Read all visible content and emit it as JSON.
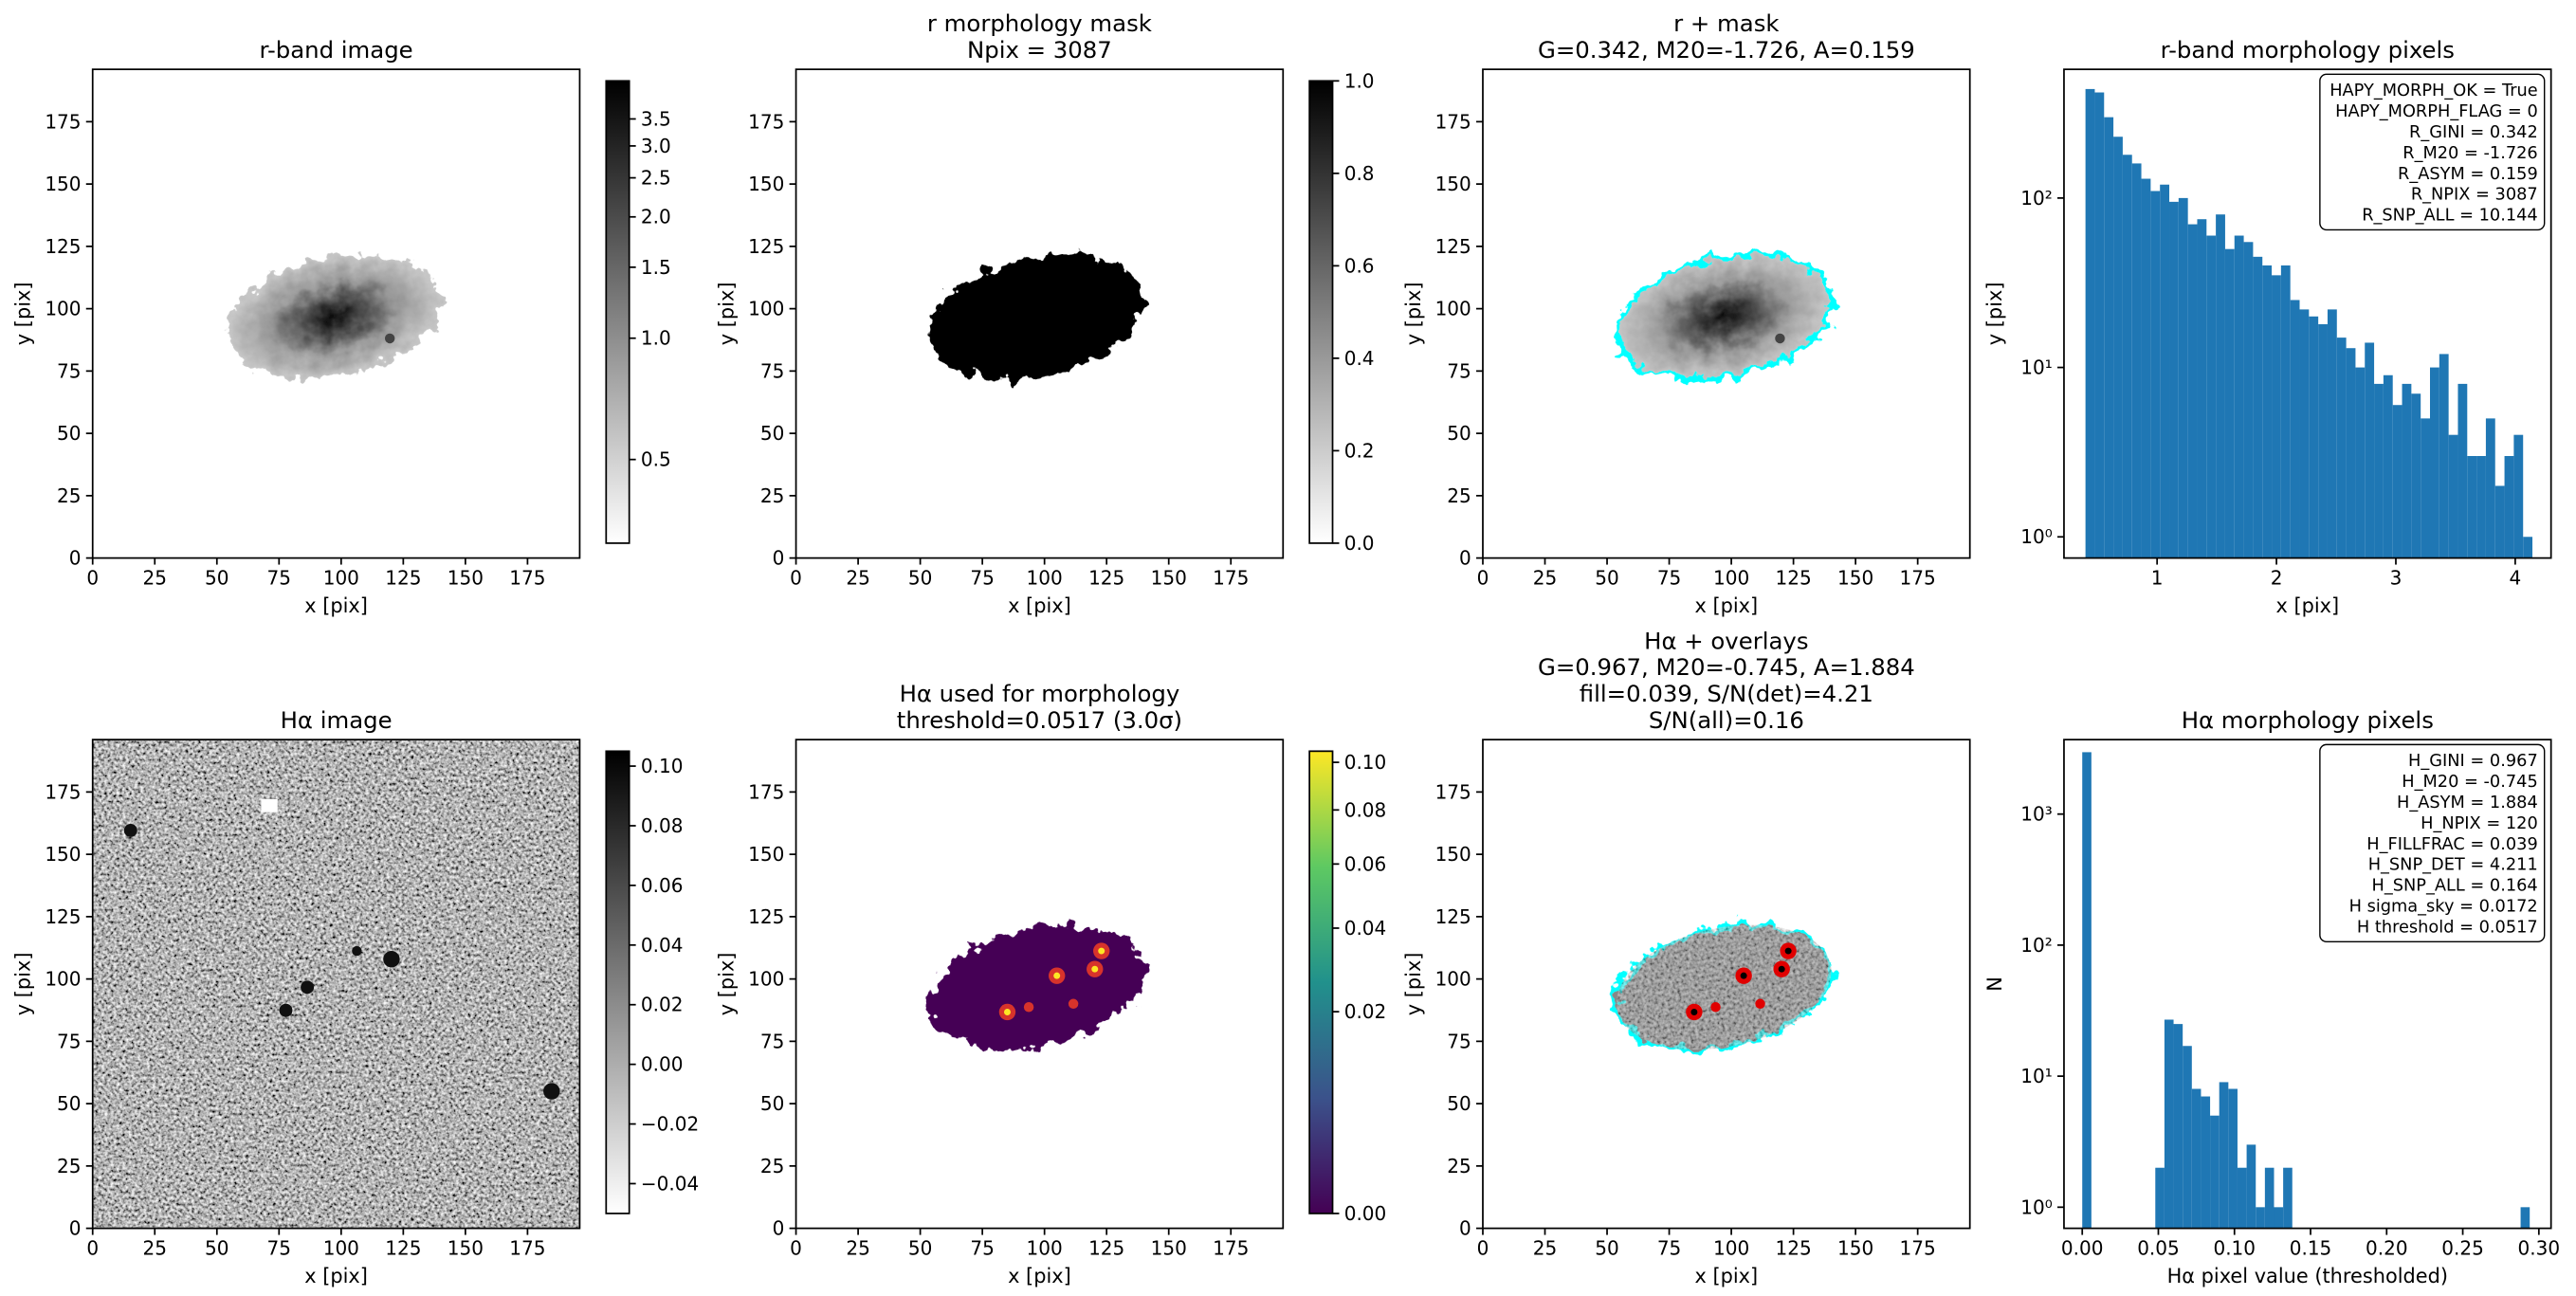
{
  "chart_data": [
    {
      "type": "image",
      "title": "r-band image",
      "xlabel": "x [pix]",
      "ylabel": "y [pix]",
      "xlim": [
        0,
        196
      ],
      "ylim": [
        0,
        196
      ],
      "xticks": [
        0,
        25,
        50,
        75,
        100,
        125,
        150,
        175
      ],
      "yticks": [
        0,
        25,
        50,
        75,
        100,
        125,
        150,
        175
      ],
      "colorbar": {
        "cmap": "Greys",
        "scale": "log",
        "lim": [
          0.31,
          4.35
        ],
        "ticks": [
          0.5,
          {
            "value": 1,
            "label": "1.0"
          },
          1.5,
          {
            "value": 2,
            "label": "2.0"
          },
          2.5,
          {
            "value": 3,
            "label": "3.0"
          },
          3.5
        ]
      }
    },
    {
      "type": "image",
      "title": [
        "r morphology mask",
        "Npix = 3087"
      ],
      "xlabel": "x [pix]",
      "ylabel": "y [pix]",
      "xlim": [
        0,
        196
      ],
      "ylim": [
        0,
        196
      ],
      "xticks": [
        0,
        25,
        50,
        75,
        100,
        125,
        150,
        175
      ],
      "yticks": [
        0,
        25,
        50,
        75,
        100,
        125,
        150,
        175
      ],
      "colorbar": {
        "cmap": "Greys",
        "scale": "linear",
        "lim": [
          0,
          1
        ],
        "ticks": [
          {
            "value": 0,
            "label": "0.0"
          },
          0.2,
          0.4,
          0.6,
          0.8,
          {
            "value": 1,
            "label": "1.0"
          }
        ]
      }
    },
    {
      "type": "image",
      "title": [
        "r + mask",
        "G=0.342, M20=-1.726, A=0.159"
      ],
      "xlabel": "x [pix]",
      "ylabel": "y [pix]",
      "xlim": [
        0,
        196
      ],
      "ylim": [
        0,
        196
      ],
      "xticks": [
        0,
        25,
        50,
        75,
        100,
        125,
        150,
        175
      ],
      "yticks": [
        0,
        25,
        50,
        75,
        100,
        125,
        150,
        175
      ]
    },
    {
      "type": "histogram",
      "title": "r-band morphology pixels",
      "xlabel": "x [pix]",
      "ylabel": "y [pix]",
      "color": "#1f77b4",
      "yscale": "log",
      "xlim": [
        0.22,
        4.3
      ],
      "xticks": [
        1,
        2,
        3,
        4
      ],
      "ylim": [
        0.75,
        575
      ],
      "yticks": [
        {
          "value": 1,
          "label": "10⁰"
        },
        {
          "value": 10,
          "label": "10¹"
        },
        {
          "value": 100,
          "label": "10²"
        }
      ],
      "bins": [
        0.4,
        0.478,
        0.556,
        0.634,
        0.712,
        0.79,
        0.868,
        0.946,
        1.024,
        1.102,
        1.18,
        1.258,
        1.336,
        1.414,
        1.492,
        1.57,
        1.648,
        1.726,
        1.804,
        1.882,
        1.96,
        2.038,
        2.116,
        2.194,
        2.272,
        2.35,
        2.428,
        2.506,
        2.584,
        2.662,
        2.74,
        2.818,
        2.896,
        2.974,
        3.052,
        3.13,
        3.208,
        3.286,
        3.364,
        3.442,
        3.52,
        3.598,
        3.676,
        3.754,
        3.832,
        3.91,
        3.988,
        4.066,
        4.144
      ],
      "values": [
        440,
        420,
        300,
        230,
        180,
        160,
        130,
        110,
        120,
        95,
        100,
        70,
        75,
        60,
        80,
        50,
        60,
        55,
        45,
        40,
        35,
        40,
        25,
        22,
        20,
        18,
        22,
        15,
        13,
        10,
        14,
        8,
        9,
        6,
        8,
        7,
        5,
        10,
        12,
        4,
        8,
        3,
        3,
        5,
        2,
        3,
        4,
        1
      ],
      "annotation": [
        "HAPY_MORPH_OK = True",
        "HAPY_MORPH_FLAG = 0",
        "R_GINI = 0.342",
        "R_M20 = -1.726",
        "R_ASYM = 0.159",
        "R_NPIX = 3087",
        "R_SNP_ALL = 10.144"
      ]
    },
    {
      "type": "image",
      "title": "Hα image",
      "xlabel": "x [pix]",
      "ylabel": "y [pix]",
      "xlim": [
        0,
        196
      ],
      "ylim": [
        0,
        196
      ],
      "xticks": [
        0,
        25,
        50,
        75,
        100,
        125,
        150,
        175
      ],
      "yticks": [
        0,
        25,
        50,
        75,
        100,
        125,
        150,
        175
      ],
      "colorbar": {
        "cmap": "Greys",
        "scale": "linear",
        "lim": [
          -0.05,
          0.105
        ],
        "ticks": [
          {
            "value": -0.04,
            "label": "−0.04"
          },
          {
            "value": -0.02,
            "label": "−0.02"
          },
          {
            "value": 0,
            "label": "0.00"
          },
          {
            "value": 0.02,
            "label": "0.02"
          },
          {
            "value": 0.04,
            "label": "0.04"
          },
          {
            "value": 0.06,
            "label": "0.06"
          },
          {
            "value": 0.08,
            "label": "0.08"
          },
          {
            "value": 0.1,
            "label": "0.10"
          }
        ]
      }
    },
    {
      "type": "image",
      "title": [
        "Hα used for morphology",
        "threshold=0.0517 (3.0σ)"
      ],
      "xlabel": "x [pix]",
      "ylabel": "y [pix]",
      "xlim": [
        0,
        196
      ],
      "ylim": [
        0,
        196
      ],
      "xticks": [
        0,
        25,
        50,
        75,
        100,
        125,
        150,
        175
      ],
      "yticks": [
        0,
        25,
        50,
        75,
        100,
        125,
        150,
        175
      ],
      "colorbar": {
        "cmap": "viridis",
        "scale": "sqrt",
        "lim": [
          0,
          0.105
        ],
        "ticks": [
          {
            "value": 0,
            "label": "0.00"
          },
          {
            "value": 0.02,
            "label": "0.02"
          },
          {
            "value": 0.04,
            "label": "0.04"
          },
          {
            "value": 0.06,
            "label": "0.06"
          },
          {
            "value": 0.08,
            "label": "0.08"
          },
          {
            "value": 0.1,
            "label": "0.10"
          }
        ]
      }
    },
    {
      "type": "image",
      "title": [
        "Hα + overlays",
        "G=0.967, M20=-0.745, A=1.884",
        "fill=0.039, S/N(det)=4.21",
        "S/N(all)=0.16"
      ],
      "xlabel": "x [pix]",
      "ylabel": "y [pix]",
      "xlim": [
        0,
        196
      ],
      "ylim": [
        0,
        196
      ],
      "xticks": [
        0,
        25,
        50,
        75,
        100,
        125,
        150,
        175
      ],
      "yticks": [
        0,
        25,
        50,
        75,
        100,
        125,
        150,
        175
      ]
    },
    {
      "type": "histogram",
      "title": "Hα morphology pixels",
      "xlabel": "Hα pixel value (thresholded)",
      "ylabel": "N",
      "color": "#1f77b4",
      "yscale": "log",
      "xlim": [
        -0.012,
        0.308
      ],
      "xticks": [
        {
          "value": 0,
          "label": "0.00"
        },
        {
          "value": 0.05,
          "label": "0.05"
        },
        {
          "value": 0.1,
          "label": "0.10"
        },
        {
          "value": 0.15,
          "label": "0.15"
        },
        {
          "value": 0.2,
          "label": "0.20"
        },
        {
          "value": 0.25,
          "label": "0.25"
        },
        {
          "value": 0.3,
          "label": "0.30"
        }
      ],
      "ylim": [
        0.69,
        3700
      ],
      "yticks": [
        {
          "value": 1,
          "label": "10⁰"
        },
        {
          "value": 10,
          "label": "10¹"
        },
        {
          "value": 100,
          "label": "10²"
        },
        {
          "value": 1000,
          "label": "10³"
        }
      ],
      "bins": [
        0,
        0.006,
        0.012,
        0.018,
        0.024,
        0.03,
        0.036,
        0.042,
        0.048,
        0.054,
        0.06,
        0.066,
        0.072,
        0.078,
        0.084,
        0.09,
        0.096,
        0.102,
        0.108,
        0.114,
        0.12,
        0.126,
        0.132,
        0.138,
        0.144,
        0.15,
        0.156,
        0.162,
        0.168,
        0.174,
        0.18,
        0.186,
        0.192,
        0.198,
        0.204,
        0.21,
        0.216,
        0.222,
        0.228,
        0.234,
        0.24,
        0.246,
        0.252,
        0.258,
        0.264,
        0.27,
        0.276,
        0.282,
        0.288,
        0.294,
        0.3
      ],
      "values": [
        2967,
        0,
        0,
        0,
        0,
        0,
        0,
        0,
        2,
        27,
        25,
        17,
        8,
        7,
        5,
        9,
        8,
        2,
        3,
        1,
        2,
        1,
        2,
        0,
        0,
        0,
        0,
        0,
        0,
        0,
        0,
        0,
        0,
        0,
        0,
        0,
        0,
        0,
        0,
        0,
        0,
        0,
        0,
        0,
        0,
        0,
        0,
        0,
        1,
        0
      ],
      "annotation": [
        "H_GINI = 0.967",
        "H_M20 = -0.745",
        "H_ASYM = 1.884",
        "H_NPIX = 120",
        "H_FILLFRAC = 0.039",
        "H_SNP_DET = 4.211",
        "H_SNP_ALL = 0.164",
        "H sigma_sky = 0.0172",
        "H threshold = 0.0517"
      ]
    }
  ]
}
